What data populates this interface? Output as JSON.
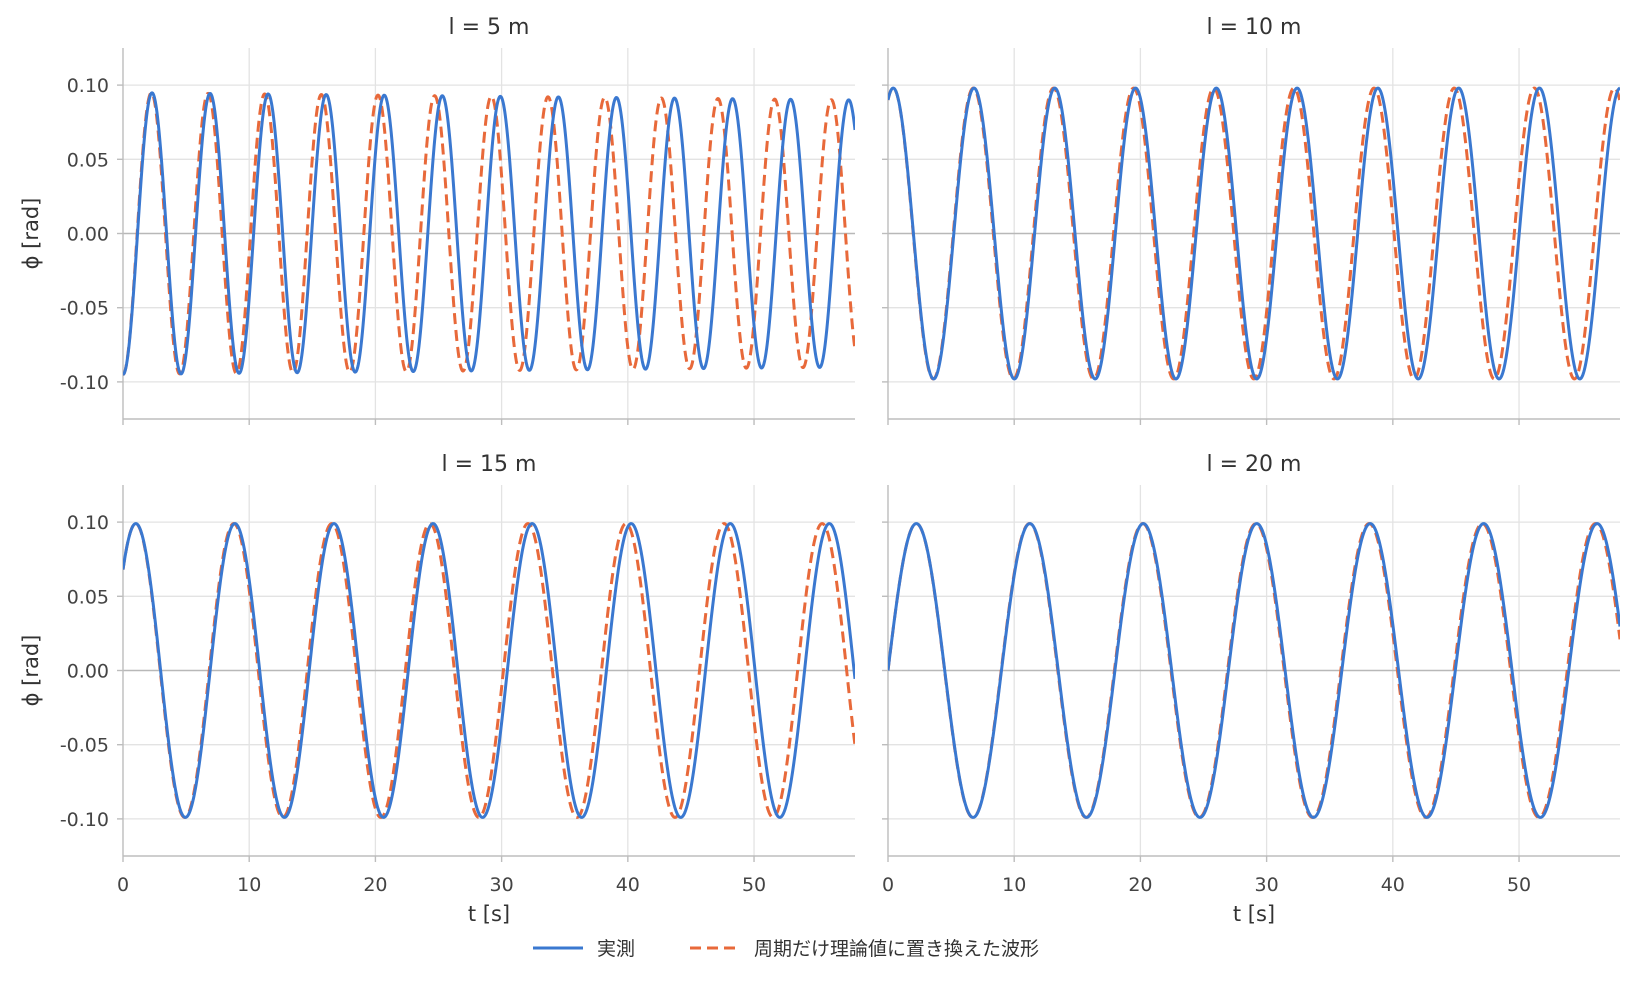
{
  "chart_data": {
    "type": "line",
    "layout": "2x2 grid, shared x and y axes",
    "xlabel": "t [s]",
    "ylabel": "ϕ [rad]",
    "xlim": [
      0,
      58
    ],
    "ylim": [
      -0.125,
      0.125
    ],
    "xticks": [
      0,
      10,
      20,
      30,
      40,
      50
    ],
    "xtick_labels": [
      "0",
      "10",
      "20",
      "30",
      "40",
      "50"
    ],
    "yticks": [
      0.1,
      0.05,
      0.0,
      -0.05,
      -0.1
    ],
    "ytick_labels": [
      "0.10",
      "0.05",
      "0.00",
      "-0.05",
      "-0.10"
    ],
    "grid": true,
    "legend": {
      "placement": "bottom-center",
      "entries": [
        "実測",
        "周期だけ理論値に置き換えた波形"
      ]
    },
    "series_styles": [
      {
        "name": "実測",
        "color": "#3a78d0",
        "dash": "solid"
      },
      {
        "name": "周期だけ理論値に置き換えた波形",
        "color": "#e8693a",
        "dash": "dashed"
      }
    ],
    "panels": [
      {
        "title": "l = 5 m",
        "series": [
          {
            "name": "実測",
            "amplitude": 0.095,
            "period": 4.6,
            "initial_phi": -0.095,
            "amplitude_end": 0.09,
            "t_end": 58
          },
          {
            "name": "周期だけ理論値に置き換えた波形",
            "amplitude": 0.095,
            "period": 4.49,
            "initial_phi": -0.095,
            "amplitude_end": 0.09,
            "t_end": 58
          }
        ]
      },
      {
        "title": "l = 10 m",
        "series": [
          {
            "name": "実測",
            "amplitude": 0.098,
            "period": 6.4,
            "initial_phi": 0.09,
            "t_end": 58
          },
          {
            "name": "周期だけ理論値に置き換えた波形",
            "amplitude": 0.098,
            "period": 6.35,
            "initial_phi": 0.09,
            "t_end": 58
          }
        ]
      },
      {
        "title": "l = 15 m",
        "series": [
          {
            "name": "実測",
            "amplitude": 0.099,
            "period": 7.85,
            "initial_phi": 0.068,
            "t_end": 58
          },
          {
            "name": "周期だけ理論値に置き換えた波形",
            "amplitude": 0.099,
            "period": 7.77,
            "initial_phi": 0.068,
            "t_end": 58
          }
        ]
      },
      {
        "title": "l = 20 m",
        "series": [
          {
            "name": "実測",
            "amplitude": 0.099,
            "period": 8.99,
            "initial_phi": 0.0,
            "t_end": 58
          },
          {
            "name": "周期だけ理論値に置き換えた波形",
            "amplitude": 0.099,
            "period": 8.97,
            "initial_phi": 0.0,
            "t_end": 58
          }
        ]
      }
    ]
  }
}
